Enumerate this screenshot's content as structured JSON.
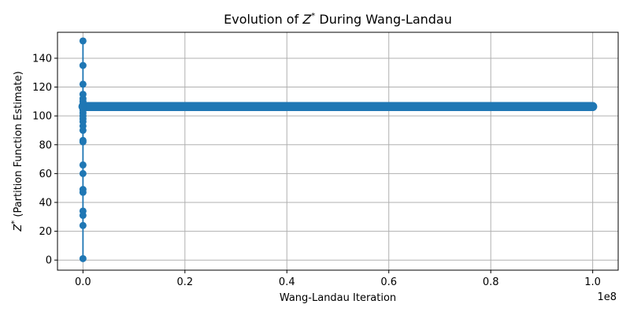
{
  "chart_data": {
    "type": "line",
    "title_prefix": "Evolution of ",
    "title_symbol": "Z",
    "title_sup": "*",
    "title_suffix": " During Wang-Landau",
    "xlabel": "Wang-Landau Iteration",
    "ylabel_symbol": "Z",
    "ylabel_sup": "*",
    "ylabel_rest": " (Partition Function Estimate)",
    "x_offset_label": "1e8",
    "xlim": [
      -0.05,
      1.05
    ],
    "ylim": [
      -7,
      158
    ],
    "x_ticks": [
      0.0,
      0.2,
      0.4,
      0.6,
      0.8,
      1.0
    ],
    "x_tick_labels": [
      "0.0",
      "0.2",
      "0.4",
      "0.6",
      "0.8",
      "1.0"
    ],
    "y_ticks": [
      0,
      20,
      40,
      60,
      80,
      100,
      120,
      140
    ],
    "y_tick_labels": [
      "0",
      "20",
      "40",
      "60",
      "80",
      "100",
      "120",
      "140"
    ],
    "grid": true,
    "color": "#1f77b4",
    "series": [
      {
        "x_scale_note": "x values in units of 1e8",
        "early_points": {
          "x": 0.0,
          "y": [
            1,
            152,
            24,
            135,
            31,
            122,
            34,
            115,
            47,
            112,
            49,
            110,
            60,
            108,
            66,
            106,
            82,
            104,
            83,
            102,
            90,
            100,
            93,
            98,
            96,
            106,
            107,
            106,
            106.5,
            106
          ]
        },
        "plateau": {
          "x_start": 0.0,
          "x_end": 1.0,
          "y": 106.5,
          "band_low": 105,
          "band_high": 108
        }
      }
    ]
  }
}
